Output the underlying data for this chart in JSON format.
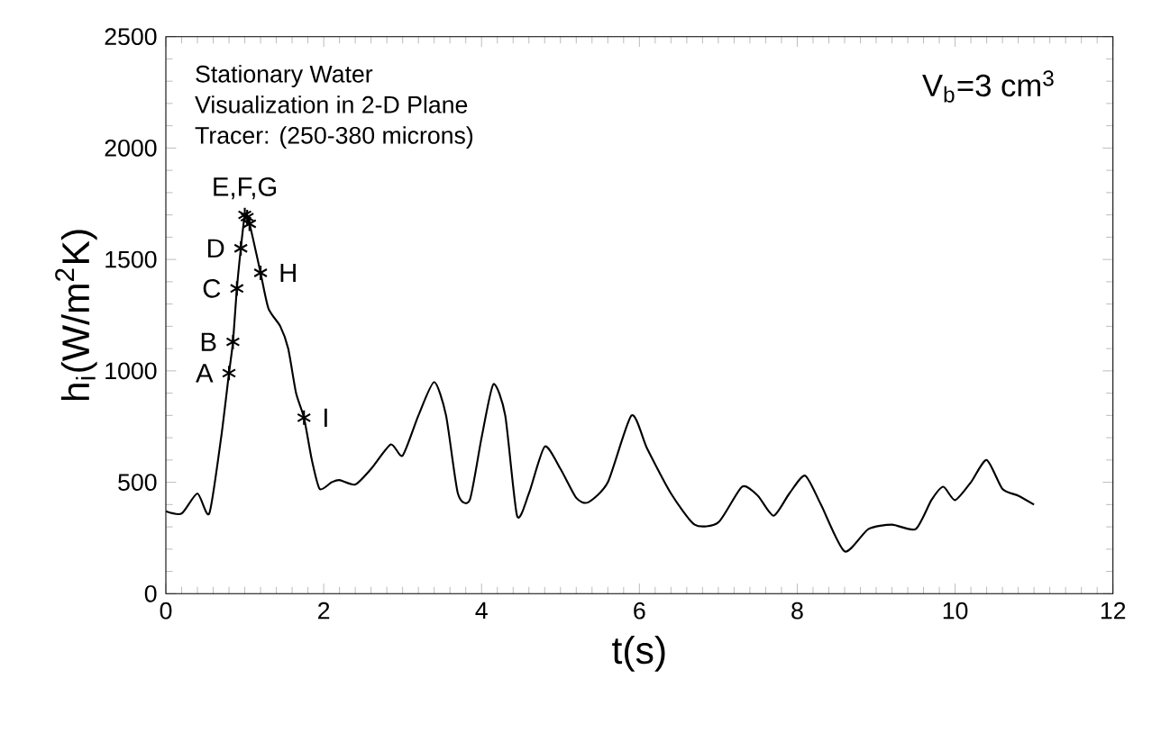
{
  "chart_data": {
    "type": "line",
    "xlabel": "t(s)",
    "ylabel": "h$_{i}$(W/m$^{2}$K)",
    "xlim": [
      0,
      12
    ],
    "ylim": [
      0,
      2500
    ],
    "xticks": [
      0,
      2,
      4,
      6,
      8,
      10,
      12
    ],
    "yticks": [
      0,
      500,
      1000,
      1500,
      2000,
      2500
    ],
    "grid": false,
    "series": [
      {
        "color": "#000000",
        "marker": "none",
        "line_style": "solid",
        "x": [
          0,
          0.2,
          0.4,
          0.55,
          0.7,
          0.8,
          0.85,
          0.9,
          0.95,
          1.0,
          1.03,
          1.06,
          1.1,
          1.2,
          1.3,
          1.45,
          1.55,
          1.65,
          1.75,
          1.85,
          1.95,
          2.1,
          2.2,
          2.4,
          2.6,
          2.85,
          3.0,
          3.2,
          3.4,
          3.55,
          3.7,
          3.85,
          4.0,
          4.15,
          4.3,
          4.45,
          4.6,
          4.8,
          5.0,
          5.2,
          5.35,
          5.6,
          5.9,
          6.1,
          6.4,
          6.7,
          7.0,
          7.3,
          7.5,
          7.7,
          7.9,
          8.1,
          8.3,
          8.6,
          8.9,
          9.2,
          9.5,
          9.7,
          9.85,
          10.0,
          10.2,
          10.4,
          10.6,
          10.8,
          11.0
        ],
        "values": [
          370,
          360,
          450,
          360,
          700,
          990,
          1130,
          1370,
          1550,
          1700,
          1690,
          1660,
          1600,
          1440,
          1280,
          1200,
          1100,
          900,
          790,
          600,
          470,
          500,
          510,
          490,
          560,
          670,
          620,
          800,
          950,
          800,
          450,
          420,
          700,
          940,
          800,
          350,
          450,
          660,
          560,
          430,
          410,
          500,
          800,
          650,
          450,
          310,
          320,
          480,
          440,
          350,
          450,
          530,
          400,
          190,
          290,
          310,
          290,
          420,
          480,
          420,
          500,
          600,
          470,
          440,
          400
        ]
      },
      {
        "type": "scatter",
        "color": "#000000",
        "marker": "cross",
        "x": [
          0.8,
          0.85,
          0.9,
          0.95,
          1.0,
          1.03,
          1.06,
          1.2,
          1.75
        ],
        "values": [
          990,
          1130,
          1370,
          1550,
          1700,
          1690,
          1660,
          1440,
          790
        ]
      }
    ],
    "annotations": [
      "Stationary Water",
      "Visualization in 2-D Plane",
      "Tracer: (250-380 microns)",
      "V$_{b}$=3  cm$^{3}$",
      {
        "text": "A",
        "x": 0.8,
        "y": 990
      },
      {
        "text": "B",
        "x": 0.85,
        "y": 1130
      },
      {
        "text": "C",
        "x": 0.9,
        "y": 1370
      },
      {
        "text": "D",
        "x": 0.95,
        "y": 1550
      },
      {
        "text": "E,F,G",
        "x": 1.0,
        "y": 1700
      },
      {
        "text": "H",
        "x": 1.2,
        "y": 1440
      },
      {
        "text": "I",
        "x": 1.75,
        "y": 790
      }
    ]
  }
}
